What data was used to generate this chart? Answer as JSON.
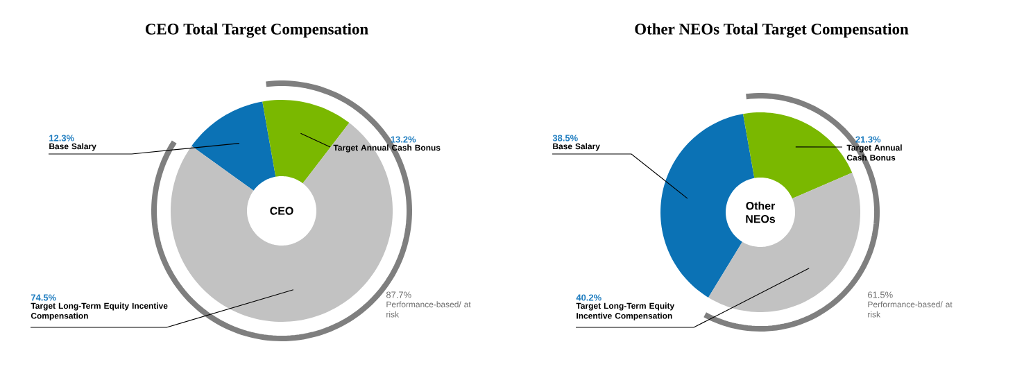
{
  "chart_data": [
    {
      "type": "donut",
      "title": "CEO Total Target Compensation",
      "categories": [
        "Base Salary",
        "Target Annual Cash Bonus",
        "Target Long-Term Equity Incentive Compensation"
      ],
      "values": [
        12.3,
        13.2,
        74.5
      ],
      "value_labels": [
        "12.3%",
        "13.2%",
        "74.5%"
      ],
      "colors": [
        "#0b72b5",
        "#7ab800",
        "#c2c2c2"
      ],
      "annotations": [
        "CEO",
        "87.7%",
        "Performance-based/ at risk"
      ]
    },
    {
      "type": "donut",
      "title": "Other NEOs Total Target Compensation",
      "categories": [
        "Base Salary",
        "Target Annual Cash Bonus",
        "Target Long-Term Equity Incentive Compensation"
      ],
      "values": [
        38.5,
        21.3,
        40.2
      ],
      "value_labels": [
        "38.5%",
        "21.3%",
        "40.2%"
      ],
      "colors": [
        "#0b72b5",
        "#7ab800",
        "#c2c2c2"
      ],
      "annotations": [
        "Other NEOs",
        "61.5%",
        "Performance-based/ at risk"
      ]
    }
  ]
}
